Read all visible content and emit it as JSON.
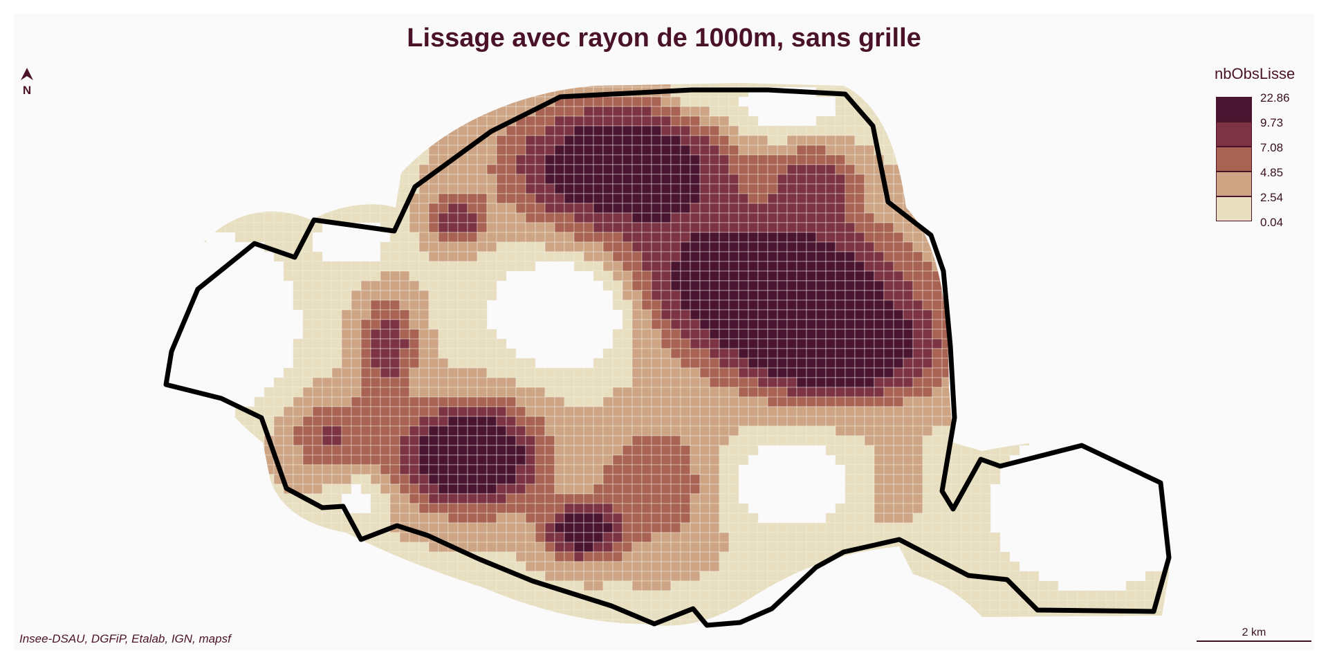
{
  "title": "Lissage avec rayon de 1000m, sans grille",
  "north_label": "N",
  "source": "Insee-DSAU, DGFiP, Etalab, IGN, mapsf",
  "scale_label": "2 km",
  "legend": {
    "title": "nbObsLisse",
    "breaks": [
      "22.86",
      "9.73",
      "7.08",
      "4.85",
      "2.54",
      "0.04"
    ],
    "colors": [
      "#4a1530",
      "#7c3344",
      "#a86352",
      "#cda585",
      "#e8dfc0"
    ]
  },
  "boundary_color": "#000000",
  "gridline_color": "#f2ece0",
  "icons": [
    "north-arrow-icon"
  ]
}
